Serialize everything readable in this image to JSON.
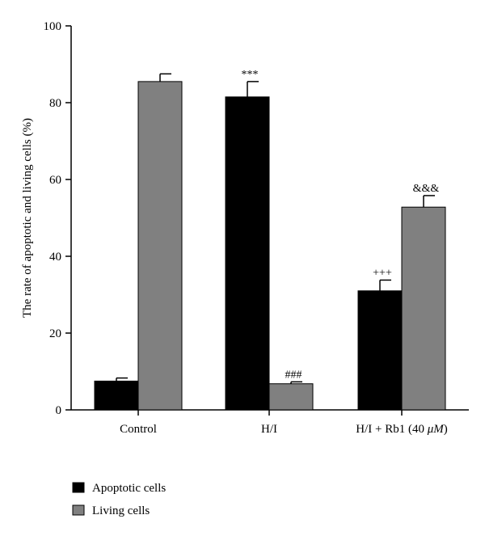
{
  "chart_data": {
    "type": "bar",
    "ylabel": "The rate of apoptotic and living cells (%)",
    "ylim": [
      0,
      100
    ],
    "yticks": [
      0,
      20,
      40,
      60,
      80,
      100
    ],
    "categories": [
      "Control",
      "H/I",
      "H/I + Rb1 (40 μM)"
    ],
    "category_label_parts": [
      {
        "text": "Control",
        "italic": ""
      },
      {
        "text": "H/I",
        "italic": ""
      },
      {
        "text": "H/I + Rb1 (40 ",
        "italic": "μM",
        "suffix": ")"
      }
    ],
    "series": [
      {
        "name": "Apoptotic cells",
        "color": "#000000",
        "values": [
          7.5,
          81.5,
          31.0
        ],
        "errors": [
          0.8,
          4.0,
          2.8
        ],
        "annotations": [
          "",
          "***",
          "+++"
        ]
      },
      {
        "name": "Living cells",
        "color": "#808080",
        "values": [
          85.5,
          6.8,
          52.8
        ],
        "errors": [
          2.0,
          0.5,
          3.0
        ],
        "annotations": [
          "",
          "###",
          "&&&"
        ]
      }
    ],
    "grid": false,
    "legend_position": "bottom-left"
  }
}
